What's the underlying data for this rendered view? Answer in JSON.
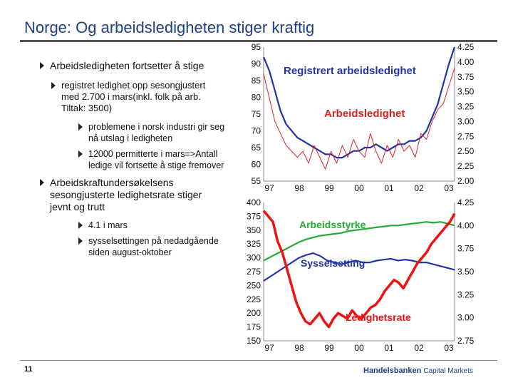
{
  "slide": {
    "title": "Norge: Og arbeidsledigheten stiger kraftig",
    "page_number": "11",
    "logo_brand": "Handelsbanken",
    "logo_sub": "Capital Markets"
  },
  "bullets": [
    {
      "level": 1,
      "text": "Arbeidsledigheten fortsetter å stige"
    },
    {
      "level": 2,
      "text": "registret ledighet opp sesongjustert\nmed 2.700 i mars(inkl. folk på arb.\nTiltak: 3500)"
    },
    {
      "level": 3,
      "text": "problemene i norsk industri gir seg\nnå utslag i ledigheten"
    },
    {
      "level": 3,
      "text": "12000 permitterte i mars=>Antall\nledige vil fortsette å stige fremover"
    },
    {
      "level": 1,
      "text": "Arbeidskraftundersøkelsens\nsesongjusterte ledighetsrate stiger\njevnt og trutt"
    },
    {
      "level": 2,
      "text": "4.1 i mars"
    },
    {
      "level": 2,
      "text": "sysselsettingen på nedadgående\nsiden august-oktober"
    }
  ],
  "chart_data": [
    {
      "type": "line",
      "x_ticks": [
        "97",
        "98",
        "99",
        "00",
        "01",
        "02",
        "03"
      ],
      "y_left_ticks": [
        "95",
        "90",
        "85",
        "80",
        "75",
        "70",
        "65",
        "60",
        "55"
      ],
      "y_right_ticks": [
        "4.25",
        "4.00",
        "3.75",
        "3.50",
        "3.25",
        "3.00",
        "2.75",
        "2.50",
        "2.25",
        "2.00"
      ],
      "ylim_left": [
        55,
        95
      ],
      "ylim_right": [
        2.0,
        4.25
      ],
      "series": [
        {
          "name": "Registrert arbeidsledighet",
          "color": "#2233aa",
          "axis": "left",
          "values": [
            92,
            88,
            82,
            76,
            72,
            70,
            68,
            67,
            66,
            65,
            64,
            63,
            63,
            62,
            62,
            63,
            64,
            64,
            65,
            65,
            66,
            65,
            64,
            65,
            66,
            66,
            67,
            67,
            68,
            70,
            74,
            78,
            84,
            90,
            95
          ]
        },
        {
          "name": "Arbeidsledighet",
          "color": "#dd2222",
          "axis": "right",
          "values": [
            3.8,
            3.4,
            3.0,
            2.8,
            2.6,
            2.5,
            2.4,
            2.5,
            2.3,
            2.6,
            2.4,
            2.2,
            2.5,
            2.3,
            2.6,
            2.4,
            2.7,
            2.5,
            2.4,
            2.8,
            2.5,
            2.3,
            2.6,
            2.4,
            2.7,
            2.5,
            2.6,
            2.4,
            2.8,
            2.7,
            3.0,
            3.2,
            3.3,
            3.6,
            3.9
          ]
        }
      ]
    },
    {
      "type": "line",
      "x_ticks": [
        "97",
        "98",
        "99",
        "00",
        "01",
        "02",
        "03"
      ],
      "y_left_ticks": [
        "400",
        "375",
        "350",
        "325",
        "300",
        "275",
        "250",
        "225",
        "200",
        "175",
        "150"
      ],
      "y_right_ticks": [
        "4.25",
        "4.00",
        "3.75",
        "3.50",
        "3.25",
        "3.00",
        "2.75"
      ],
      "ylim_left": [
        150,
        400
      ],
      "ylim_right": [
        2.75,
        4.25
      ],
      "series": [
        {
          "name": "Arbeidsstyrke",
          "color": "#22aa33",
          "axis": "right",
          "values": [
            3.62,
            3.66,
            3.7,
            3.74,
            3.78,
            3.82,
            3.85,
            3.87,
            3.89,
            3.9,
            3.91,
            3.92,
            3.94,
            3.95,
            3.96,
            3.97,
            3.98,
            3.99,
            4.0,
            4.0,
            4.01,
            4.02,
            4.03,
            4.04,
            4.03,
            4.04,
            4.02,
            4.0
          ]
        },
        {
          "name": "Sysselsetting",
          "color": "#2233aa",
          "axis": "right",
          "values": [
            3.4,
            3.45,
            3.5,
            3.55,
            3.6,
            3.65,
            3.68,
            3.7,
            3.67,
            3.62,
            3.6,
            3.58,
            3.6,
            3.62,
            3.6,
            3.6,
            3.62,
            3.63,
            3.64,
            3.62,
            3.63,
            3.62,
            3.6,
            3.6,
            3.58,
            3.56,
            3.54,
            3.52
          ]
        },
        {
          "name": "Ledighetsrate",
          "color": "#ee1111",
          "axis": "left",
          "values": [
            385,
            375,
            365,
            330,
            310,
            280,
            250,
            220,
            200,
            185,
            180,
            190,
            200,
            185,
            175,
            190,
            200,
            195,
            190,
            205,
            195,
            190,
            200,
            210,
            215,
            225,
            240,
            250,
            260,
            255,
            245,
            260,
            275,
            290,
            300,
            310,
            325,
            335,
            345,
            355,
            365,
            380
          ]
        }
      ]
    }
  ]
}
